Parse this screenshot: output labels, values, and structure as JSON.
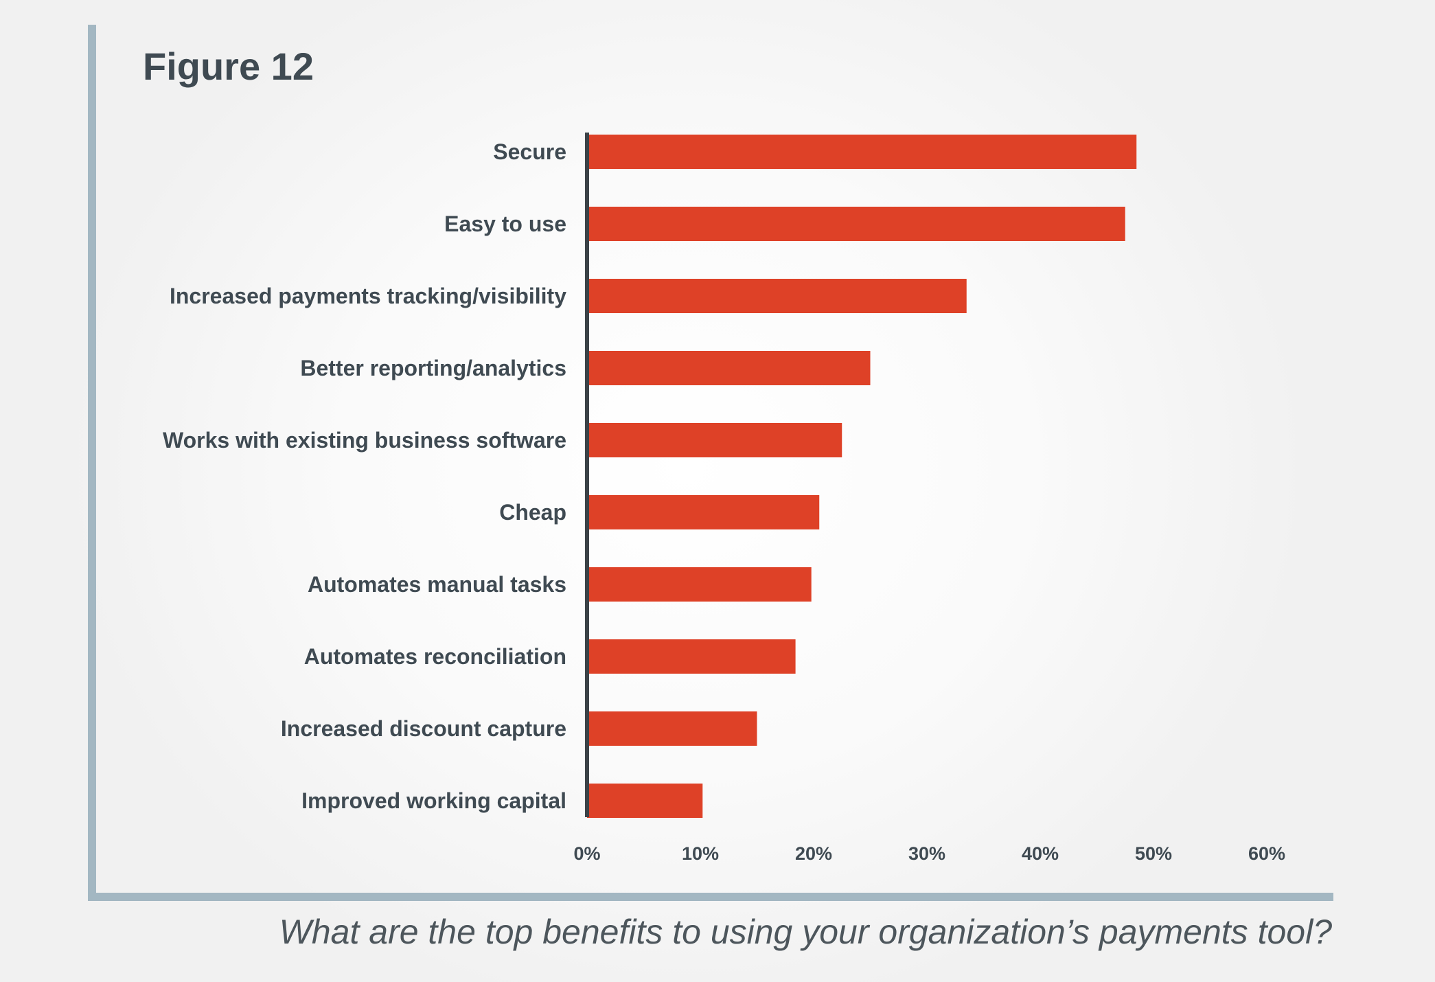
{
  "figure_label": "Figure 12",
  "caption": "What are the top benefits to using your organization’s payments tool?",
  "colors": {
    "bar": "#de4127",
    "axis": "#3b4247",
    "frame": "#a3b7c2",
    "text": "#3f4a52"
  },
  "chart_data": {
    "type": "bar",
    "orientation": "horizontal",
    "categories": [
      "Secure",
      "Easy to use",
      "Increased payments tracking/visibility",
      "Better reporting/analytics",
      "Works with existing business software",
      "Cheap",
      "Automates manual tasks",
      "Automates reconciliation",
      "Increased discount capture",
      "Improved working capital"
    ],
    "values": [
      48.5,
      47.5,
      33.5,
      25,
      22.5,
      20.5,
      19.8,
      18.4,
      15,
      10.2
    ],
    "xlim": [
      0,
      60
    ],
    "xticks": [
      "0%",
      "10%",
      "20%",
      "30%",
      "40%",
      "50%",
      "60%"
    ],
    "xlabel": "",
    "ylabel": "",
    "grid": false,
    "legend": "none"
  }
}
